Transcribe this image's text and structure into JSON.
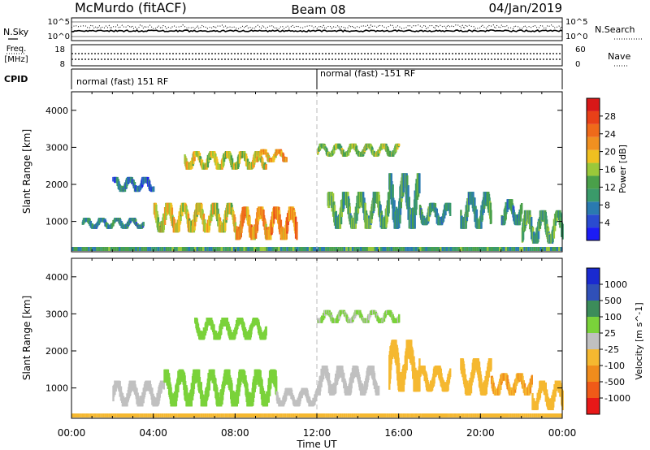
{
  "header": {
    "radar": "McMurdo (fitACF)",
    "beam": "Beam 08",
    "date": "04/Jan/2019"
  },
  "panels": {
    "nsky": {
      "label": "N.Sky",
      "right_label": "N.Search",
      "ticks_left": [
        "10^5",
        "10^0"
      ],
      "ticks_right": [
        "10^5",
        "10^0"
      ]
    },
    "freq": {
      "label_top": "Freq.",
      "label_bottom": "[MHz]",
      "ticks_left": [
        "18",
        "8"
      ],
      "ticks_right": [
        "60",
        "0"
      ],
      "right_label": "Nave"
    },
    "cpid": {
      "label": "CPID",
      "modes": [
        {
          "text": "normal (fast) 151 RF",
          "start_hour": 0
        },
        {
          "text": "normal (fast) -151 RF",
          "start_hour": 12
        }
      ]
    }
  },
  "chart_data": [
    {
      "type": "heatmap",
      "title": "",
      "quantity": "Power",
      "colorbar_label": "Power [dB]",
      "colorbar_ticks": [
        4,
        8,
        12,
        16,
        20,
        24,
        28
      ],
      "colorbar_range": [
        0,
        32
      ],
      "colors": [
        "#1c1cf4",
        "#2a4bd0",
        "#2a7ab0",
        "#3a9a6a",
        "#4aa04a",
        "#9ac83a",
        "#f0c020",
        "#f09020",
        "#ef6a1a",
        "#e84018",
        "#d81818"
      ],
      "ylabel": "Slant Range [km]",
      "y_ticks": [
        1000,
        2000,
        3000,
        4000
      ],
      "ylim": [
        180,
        4500
      ],
      "xlim_hours": [
        0,
        24
      ],
      "regions": [
        {
          "t0": 0.5,
          "t1": 3.5,
          "r0": 800,
          "r1": 1100,
          "value": 9
        },
        {
          "t0": 2.0,
          "t1": 4.0,
          "r0": 1800,
          "r1": 2200,
          "value": 7
        },
        {
          "t0": 4.0,
          "t1": 8.0,
          "r0": 700,
          "r1": 1500,
          "value": 18
        },
        {
          "t0": 5.5,
          "t1": 9.5,
          "r0": 2400,
          "r1": 2900,
          "value": 17
        },
        {
          "t0": 8.0,
          "t1": 11.0,
          "r0": 500,
          "r1": 1400,
          "value": 22
        },
        {
          "t0": 9.0,
          "t1": 10.5,
          "r0": 2600,
          "r1": 2950,
          "value": 21
        },
        {
          "t0": 12.0,
          "t1": 16.0,
          "r0": 2750,
          "r1": 3100,
          "value": 14
        },
        {
          "t0": 12.5,
          "t1": 15.5,
          "r0": 800,
          "r1": 1800,
          "value": 12
        },
        {
          "t0": 15.5,
          "t1": 17.0,
          "r0": 800,
          "r1": 2300,
          "value": 11
        },
        {
          "t0": 17.0,
          "t1": 18.5,
          "r0": 900,
          "r1": 1500,
          "value": 10
        },
        {
          "t0": 19.0,
          "t1": 20.5,
          "r0": 800,
          "r1": 1800,
          "value": 10
        },
        {
          "t0": 21.0,
          "t1": 22.0,
          "r0": 900,
          "r1": 1600,
          "value": 9
        },
        {
          "t0": 22.0,
          "t1": 24.0,
          "r0": 400,
          "r1": 1300,
          "value": 12
        }
      ]
    },
    {
      "type": "heatmap",
      "title": "",
      "quantity": "Velocity",
      "colorbar_label": "Velocity [m s^-1]",
      "colorbar_ticks": [
        1000,
        500,
        100,
        25,
        -25,
        -100,
        -500,
        -1000
      ],
      "colorbar_range": [
        -1250,
        1250
      ],
      "colors": [
        "#e81818",
        "#f05a18",
        "#f08c1c",
        "#f5b830",
        "#c0c0c0",
        "#7ad23a",
        "#3c8c5a",
        "#3050b8",
        "#1a2ad0"
      ],
      "ylabel": "Slant Range [km]",
      "y_ticks": [
        1000,
        2000,
        3000,
        4000
      ],
      "ylim": [
        180,
        4500
      ],
      "xlabel": "Time UT",
      "x_ticks": [
        "00:00",
        "04:00",
        "08:00",
        "12:00",
        "16:00",
        "20:00",
        "00:00"
      ],
      "xlim_hours": [
        0,
        24
      ],
      "regions": [
        {
          "t0": 2.0,
          "t1": 4.5,
          "r0": 500,
          "r1": 1200,
          "value": 60
        },
        {
          "t0": 4.5,
          "t1": 10.0,
          "r0": 500,
          "r1": 1500,
          "value": 200
        },
        {
          "t0": 6.0,
          "t1": 9.5,
          "r0": 2300,
          "r1": 2900,
          "value": 300
        },
        {
          "t0": 10.0,
          "t1": 12.0,
          "r0": 500,
          "r1": 1000,
          "value": 60
        },
        {
          "t0": 12.0,
          "t1": 16.0,
          "r0": 2750,
          "r1": 3100,
          "value": 150
        },
        {
          "t0": 12.0,
          "t1": 15.0,
          "r0": 800,
          "r1": 1600,
          "value": 60
        },
        {
          "t0": 15.5,
          "t1": 17.0,
          "r0": 900,
          "r1": 2300,
          "value": -200
        },
        {
          "t0": 17.0,
          "t1": 18.5,
          "r0": 900,
          "r1": 1600,
          "value": -300
        },
        {
          "t0": 19.0,
          "t1": 20.5,
          "r0": 800,
          "r1": 1800,
          "value": -300
        },
        {
          "t0": 20.5,
          "t1": 22.5,
          "r0": 800,
          "r1": 1400,
          "value": -400
        },
        {
          "t0": 22.5,
          "t1": 24.0,
          "r0": 400,
          "r1": 1200,
          "value": -250
        }
      ]
    }
  ]
}
